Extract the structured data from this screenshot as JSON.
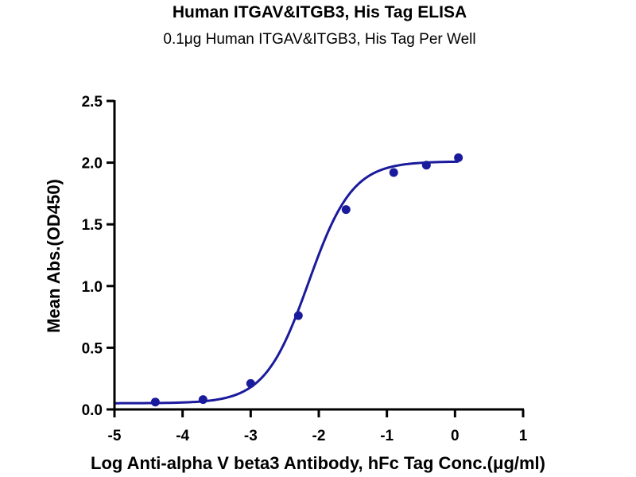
{
  "chart_data": {
    "type": "scatter",
    "title": "Human ITGAV&ITGB3, His Tag ELISA",
    "subtitle": "0.1μg Human ITGAV&ITGB3, His Tag Per Well",
    "xlabel": "Log Anti-alpha V beta3 Antibody, hFc Tag Conc.(μg/ml)",
    "ylabel": "Mean Abs.(OD450)",
    "xlim": [
      -5,
      1
    ],
    "ylim": [
      0,
      2.5
    ],
    "xticks": [
      -5,
      -4,
      -3,
      -2,
      -1,
      0,
      1
    ],
    "yticks": [
      0.0,
      0.5,
      1.0,
      1.5,
      2.0,
      2.5
    ],
    "xtick_labels": [
      "-5",
      "-4",
      "-3",
      "-2",
      "-1",
      "0",
      "1"
    ],
    "ytick_labels": [
      "0.0",
      "0.5",
      "1.0",
      "1.5",
      "2.0",
      "2.5"
    ],
    "grid": false,
    "series_color": "#1a1a9c",
    "points": [
      {
        "x": -4.4,
        "y": 0.06
      },
      {
        "x": -3.7,
        "y": 0.08
      },
      {
        "x": -3.0,
        "y": 0.21
      },
      {
        "x": -2.3,
        "y": 0.76
      },
      {
        "x": -1.6,
        "y": 1.62
      },
      {
        "x": -0.9,
        "y": 1.92
      },
      {
        "x": -0.42,
        "y": 1.98
      },
      {
        "x": 0.05,
        "y": 2.04
      }
    ],
    "fit_curve": {
      "model": "4PL",
      "bottom": 0.05,
      "top": 2.01,
      "log_ec50": -2.15,
      "hill_slope": 1.35,
      "x_range": [
        -5,
        0.05
      ]
    }
  }
}
